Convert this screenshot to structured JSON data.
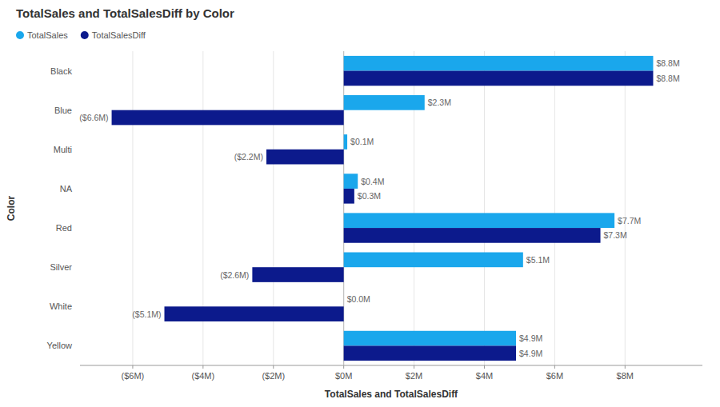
{
  "chart_data": {
    "type": "bar",
    "orientation": "horizontal",
    "title": "TotalSales and TotalSalesDiff by Color",
    "xlabel": "TotalSales and TotalSalesDiff",
    "ylabel": "Color",
    "categories": [
      "Yellow",
      "White",
      "Silver",
      "Red",
      "NA",
      "Multi",
      "Blue",
      "Black"
    ],
    "series": [
      {
        "name": "TotalSales",
        "color": "#1AA7EC",
        "values": [
          4.9,
          0.0,
          5.1,
          7.7,
          0.4,
          0.1,
          2.3,
          8.8
        ],
        "value_labels": [
          "$4.9M",
          "$0.0M",
          "$5.1M",
          "$7.7M",
          "$0.4M",
          "$0.1M",
          "$2.3M",
          "$8.8M"
        ]
      },
      {
        "name": "TotalSalesDiff",
        "color": "#0C1A8C",
        "values": [
          4.9,
          -5.1,
          -2.6,
          7.3,
          0.3,
          -2.2,
          -6.6,
          8.8
        ],
        "value_labels": [
          "$4.9M",
          "($5.1M)",
          "($2.6M)",
          "$7.3M",
          "$0.3M",
          "($2.2M)",
          "($6.6M)",
          "$8.8M"
        ]
      }
    ],
    "xlim": [
      -7.5,
      10.2
    ],
    "xticks": [
      {
        "value": -6,
        "label": "($6M)"
      },
      {
        "value": -4,
        "label": "($4M)"
      },
      {
        "value": -2,
        "label": "($2M)"
      },
      {
        "value": 0,
        "label": "$0M"
      },
      {
        "value": 2,
        "label": "$2M"
      },
      {
        "value": 4,
        "label": "$4M"
      },
      {
        "value": 6,
        "label": "$6M"
      },
      {
        "value": 8,
        "label": "$8M"
      }
    ],
    "grid": true,
    "legend": "upper left",
    "data_labels": true
  }
}
